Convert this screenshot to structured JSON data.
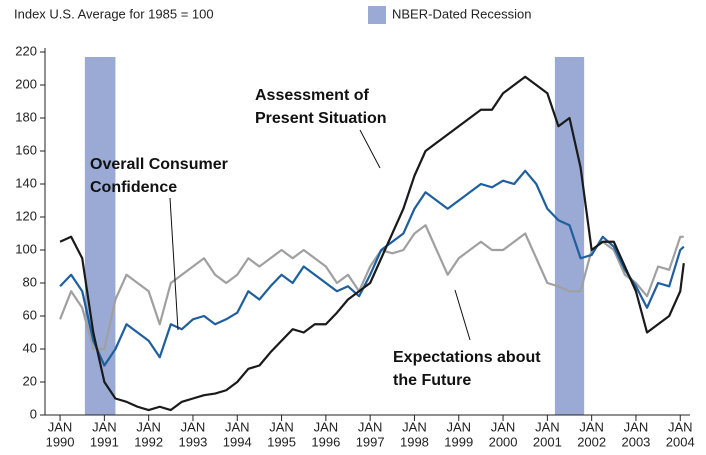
{
  "chart_data": {
    "type": "line",
    "subtitle": "Index U.S. Average for 1985 = 100",
    "recession_label": "NBER-Dated Recession",
    "recession_color": "#9aaad4",
    "recessions": [
      [
        1990.56,
        1991.25
      ],
      [
        2001.17,
        2001.83
      ]
    ],
    "month_label": "JAN",
    "x": [
      1990,
      1990.25,
      1990.5,
      1990.75,
      1991,
      1991.25,
      1991.5,
      1991.75,
      1992,
      1992.25,
      1992.5,
      1992.75,
      1993,
      1993.25,
      1993.5,
      1993.75,
      1994,
      1994.25,
      1994.5,
      1994.75,
      1995,
      1995.25,
      1995.5,
      1995.75,
      1996,
      1996.25,
      1996.5,
      1996.75,
      1997,
      1997.25,
      1997.5,
      1997.75,
      1998,
      1998.25,
      1998.5,
      1998.75,
      1999,
      1999.25,
      1999.5,
      1999.75,
      2000,
      2000.25,
      2000.5,
      2000.75,
      2001,
      2001.25,
      2001.5,
      2001.75,
      2002,
      2002.25,
      2002.5,
      2002.75,
      2003,
      2003.25,
      2003.5,
      2003.75,
      2004,
      2004.08
    ],
    "series": [
      {
        "name": "Assessment of Present Situation",
        "color": "#1a1a1a",
        "values": [
          105,
          108,
          95,
          50,
          20,
          10,
          8,
          5,
          3,
          5,
          3,
          8,
          10,
          12,
          13,
          15,
          20,
          28,
          30,
          38,
          45,
          52,
          50,
          55,
          55,
          62,
          70,
          75,
          80,
          95,
          110,
          125,
          145,
          160,
          165,
          170,
          175,
          180,
          185,
          185,
          195,
          200,
          205,
          200,
          195,
          175,
          180,
          150,
          100,
          105,
          105,
          90,
          75,
          50,
          55,
          60,
          75,
          92
        ]
      },
      {
        "name": "Overall Consumer Confidence",
        "color": "#1f5f9e",
        "values": [
          78,
          85,
          75,
          45,
          30,
          40,
          55,
          50,
          45,
          35,
          55,
          52,
          58,
          60,
          55,
          58,
          62,
          75,
          70,
          78,
          85,
          80,
          90,
          85,
          80,
          75,
          78,
          72,
          85,
          100,
          105,
          110,
          125,
          135,
          130,
          125,
          130,
          135,
          140,
          138,
          142,
          140,
          148,
          140,
          125,
          118,
          115,
          95,
          97,
          108,
          102,
          88,
          78,
          65,
          80,
          78,
          100,
          102
        ]
      },
      {
        "name": "Expectations about the Future",
        "color": "#a0a0a0",
        "values": [
          58,
          75,
          65,
          40,
          40,
          70,
          85,
          80,
          75,
          55,
          80,
          85,
          90,
          95,
          85,
          80,
          85,
          95,
          90,
          95,
          100,
          95,
          100,
          95,
          90,
          80,
          85,
          75,
          90,
          100,
          98,
          100,
          110,
          115,
          100,
          85,
          95,
          100,
          105,
          100,
          100,
          105,
          110,
          95,
          80,
          78,
          75,
          75,
          100,
          105,
          100,
          85,
          80,
          72,
          90,
          88,
          108,
          108
        ]
      }
    ],
    "annotations": [
      {
        "lines": [
          "Assessment of",
          "Present Situation"
        ]
      },
      {
        "lines": [
          "Overall Consumer",
          "Confidence"
        ]
      },
      {
        "lines": [
          "Expectations about",
          "the Future"
        ]
      }
    ],
    "xlim": [
      1989.66,
      2004.22
    ],
    "xticks": [
      {
        "value": 1990,
        "label": "1990"
      },
      {
        "value": 1991,
        "label": "1991"
      },
      {
        "value": 1992,
        "label": "1992"
      },
      {
        "value": 1993,
        "label": "1993"
      },
      {
        "value": 1994,
        "label": "1994"
      },
      {
        "value": 1995,
        "label": "1995"
      },
      {
        "value": 1996,
        "label": "1996"
      },
      {
        "value": 1997,
        "label": "1997"
      },
      {
        "value": 1998,
        "label": "1998"
      },
      {
        "value": 1999,
        "label": "1999"
      },
      {
        "value": 2000,
        "label": "2000"
      },
      {
        "value": 2001,
        "label": "2001"
      },
      {
        "value": 2002,
        "label": "2002"
      },
      {
        "value": 2003,
        "label": "2003"
      },
      {
        "value": 2004,
        "label": "2004"
      }
    ],
    "ylim": [
      0,
      220
    ],
    "yticks": [
      0,
      20,
      40,
      60,
      80,
      100,
      120,
      140,
      160,
      180,
      200,
      220
    ]
  }
}
